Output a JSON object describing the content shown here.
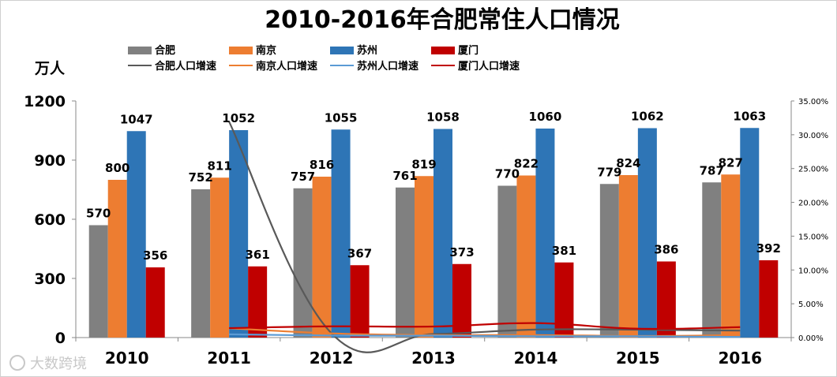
{
  "chart_data": {
    "type": "bar",
    "title": "2010-2016年合肥常住人口情况",
    "ylabel": "万人",
    "ylim": [
      0,
      1200
    ],
    "y_ticks": [
      "0",
      "300",
      "600",
      "900",
      "1200"
    ],
    "y2lim": [
      0,
      0.35
    ],
    "y2_ticks": [
      "0.00%",
      "5.00%",
      "10.00%",
      "15.00%",
      "20.00%",
      "25.00%",
      "30.00%",
      "35.00%"
    ],
    "categories": [
      "2010",
      "2011",
      "2012",
      "2013",
      "2014",
      "2015",
      "2016"
    ],
    "series": [
      {
        "name": "合肥",
        "color": "#808080",
        "values": [
          570,
          752,
          757,
          761,
          770,
          779,
          787
        ]
      },
      {
        "name": "南京",
        "color": "#ED7D31",
        "values": [
          800,
          811,
          816,
          819,
          822,
          824,
          827
        ]
      },
      {
        "name": "苏州",
        "color": "#2E75B6",
        "values": [
          1047,
          1052,
          1055,
          1058,
          1060,
          1062,
          1063
        ]
      },
      {
        "name": "厦门",
        "color": "#C00000",
        "values": [
          356,
          361,
          367,
          373,
          381,
          386,
          392
        ]
      }
    ],
    "line_series": [
      {
        "name": "合肥人口增速",
        "color": "#595959",
        "values": [
          null,
          0.3193,
          0.0066,
          0.0053,
          0.0118,
          0.0117,
          0.0103
        ]
      },
      {
        "name": "南京人口增速",
        "color": "#ED7D31",
        "values": [
          null,
          0.0138,
          0.0062,
          0.0037,
          0.0037,
          0.0024,
          0.0036
        ]
      },
      {
        "name": "苏州人口增速",
        "color": "#5B9BD5",
        "values": [
          null,
          0.0048,
          0.0029,
          0.0028,
          0.0019,
          0.0019,
          0.0009
        ]
      },
      {
        "name": "厦门人口增速",
        "color": "#C00000",
        "values": [
          null,
          0.014,
          0.0166,
          0.0163,
          0.0214,
          0.0131,
          0.0155
        ]
      }
    ],
    "legend_position": "top",
    "grid": false
  },
  "watermark": "大数跨境"
}
